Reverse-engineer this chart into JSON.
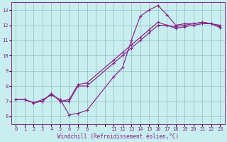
{
  "xlabel": "Windchill (Refroidissement éolien,°C)",
  "bg_color": "#c8eef0",
  "grid_color": "#a0c8d0",
  "line_color": "#882288",
  "xlim": [
    -0.5,
    23.5
  ],
  "ylim": [
    5.5,
    13.5
  ],
  "xticks_all": [
    0,
    1,
    2,
    3,
    4,
    5,
    6,
    7,
    8,
    9,
    10,
    11,
    12,
    13,
    14,
    15,
    16,
    17,
    18,
    19,
    20,
    21,
    22,
    23
  ],
  "xtick_labels": [
    "0",
    "1",
    "2",
    "3",
    "4",
    "5",
    "6",
    "7",
    "8",
    "",
    "",
    "11",
    "12",
    "13",
    "14",
    "15",
    "16",
    "17",
    "18",
    "19",
    "20",
    "21",
    "22",
    "23"
  ],
  "yticks": [
    6,
    7,
    8,
    9,
    10,
    11,
    12,
    13
  ],
  "curve1_x": [
    0,
    1,
    2,
    3,
    4,
    5,
    6,
    7,
    8,
    11,
    12,
    13,
    14,
    15,
    16,
    17,
    18,
    19,
    20,
    21,
    22,
    23
  ],
  "curve1_y": [
    7.1,
    7.1,
    6.9,
    7.1,
    7.4,
    7.1,
    6.1,
    6.2,
    6.4,
    8.6,
    9.2,
    11.0,
    12.6,
    13.0,
    13.3,
    12.7,
    12.0,
    12.1,
    12.1,
    12.2,
    12.1,
    11.9
  ],
  "curve2_x": [
    0,
    1,
    2,
    3,
    4,
    5,
    6,
    7,
    8,
    11,
    12,
    13,
    14,
    15,
    16,
    17,
    18,
    19,
    20,
    21,
    22,
    23
  ],
  "curve2_y": [
    7.1,
    7.1,
    6.9,
    7.0,
    7.5,
    7.0,
    7.0,
    8.0,
    8.0,
    9.5,
    10.0,
    10.5,
    11.0,
    11.5,
    12.0,
    12.0,
    11.8,
    11.9,
    12.0,
    12.1,
    12.1,
    12.0
  ],
  "curve3_x": [
    0,
    1,
    2,
    3,
    4,
    5,
    6,
    7,
    8,
    11,
    12,
    13,
    14,
    15,
    16,
    17,
    18,
    19,
    20,
    21,
    22,
    23
  ],
  "curve3_y": [
    7.1,
    7.1,
    6.9,
    7.0,
    7.5,
    7.0,
    7.1,
    8.1,
    8.2,
    9.7,
    10.2,
    10.7,
    11.2,
    11.7,
    12.2,
    12.0,
    11.9,
    12.0,
    12.1,
    12.2,
    12.1,
    11.85
  ]
}
